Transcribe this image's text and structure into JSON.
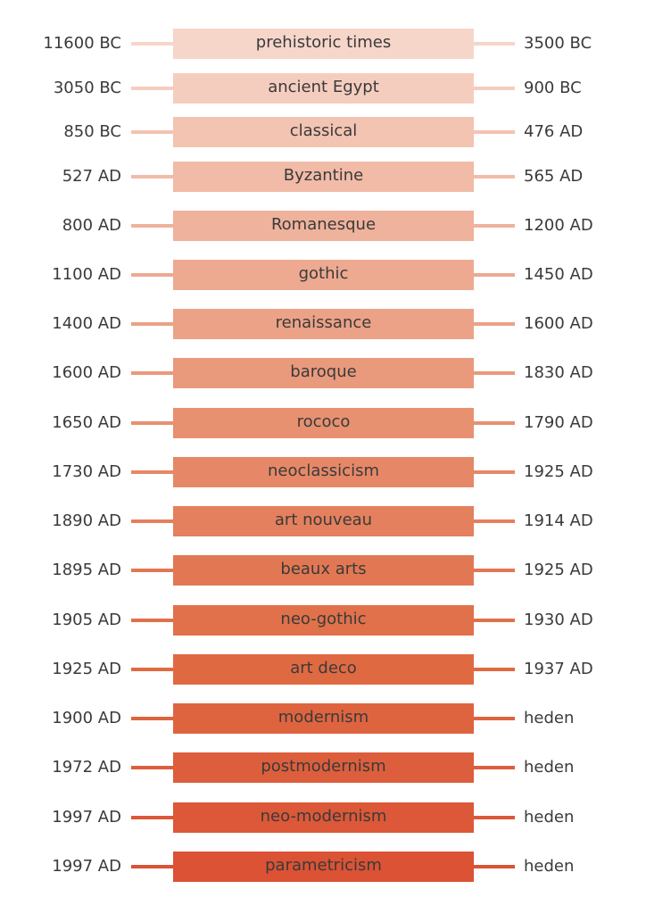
{
  "periods": [
    {
      "name": "prehistoric times",
      "start": "11600 BC",
      "end": "3500 BC",
      "color": "#F7D6CA"
    },
    {
      "name": "ancient Egypt",
      "start": "3050 BC",
      "end": "900 BC",
      "color": "#F5CDBE"
    },
    {
      "name": "classical",
      "start": "850 BC",
      "end": "476 AD",
      "color": "#F3C4B2"
    },
    {
      "name": "Byzantine",
      "start": "527 AD",
      "end": "565 AD",
      "color": "#F1BBA7"
    },
    {
      "name": "Romanesque",
      "start": "800 AD",
      "end": "1200 AD",
      "color": "#EFB29C"
    },
    {
      "name": "gothic",
      "start": "1100 AD",
      "end": "1450 AD",
      "color": "#EDAA91"
    },
    {
      "name": "renaissance",
      "start": "1400 AD",
      "end": "1600 AD",
      "color": "#EBA287"
    },
    {
      "name": "baroque",
      "start": "1600 AD",
      "end": "1830 AD",
      "color": "#E9997C"
    },
    {
      "name": "rococo",
      "start": "1650 AD",
      "end": "1790 AD",
      "color": "#E79171"
    },
    {
      "name": "neoclassicism",
      "start": "1730 AD",
      "end": "1925 AD",
      "color": "#E68867"
    },
    {
      "name": "art nouveau",
      "start": "1890 AD",
      "end": "1914 AD",
      "color": "#E4805D"
    },
    {
      "name": "beaux arts",
      "start": "1895 AD",
      "end": "1925 AD",
      "color": "#E27853"
    },
    {
      "name": "neo-gothic",
      "start": "1905 AD",
      "end": "1930 AD",
      "color": "#E0714A"
    },
    {
      "name": "art deco",
      "start": "1925 AD",
      "end": "1937 AD",
      "color": "#DF6A42"
    },
    {
      "name": "modernism",
      "start": "1900 AD",
      "end": "heden",
      "color": "#DE6440"
    },
    {
      "name": "postmodernism",
      "start": "1972 AD",
      "end": "heden",
      "color": "#DD5E3C"
    },
    {
      "name": "neo-modernism",
      "start": "1997 AD",
      "end": "heden",
      "color": "#DC5838"
    },
    {
      "name": "parametricism",
      "start": "1997 AD",
      "end": "heden",
      "color": "#DB5234"
    }
  ]
}
